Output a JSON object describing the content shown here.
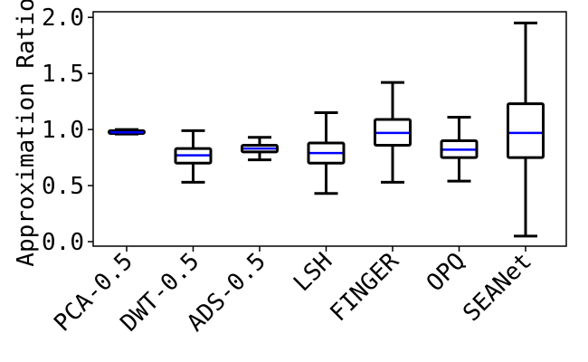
{
  "chart_data": {
    "type": "box",
    "title": "",
    "xlabel": "",
    "ylabel": "Approximation Ratio",
    "ylim": [
      -0.04,
      2.05
    ],
    "yticks": [
      "0.0",
      "0.5",
      "1.0",
      "1.5",
      "2.0"
    ],
    "ytick_values": [
      0.0,
      0.5,
      1.0,
      1.5,
      2.0
    ],
    "grid": false,
    "box_color": "#000000",
    "median_color": "#0000ff",
    "categories": [
      "PCA-0.5",
      "DWT-0.5",
      "ADS-0.5",
      "LSH",
      "FINGER",
      "OPQ",
      "SEANet"
    ],
    "boxes": [
      {
        "whisker_low": 0.96,
        "q1": 0.965,
        "median": 0.975,
        "q3": 0.99,
        "whisker_high": 1.0
      },
      {
        "whisker_low": 0.53,
        "q1": 0.7,
        "median": 0.77,
        "q3": 0.83,
        "whisker_high": 0.99
      },
      {
        "whisker_low": 0.73,
        "q1": 0.8,
        "median": 0.83,
        "q3": 0.86,
        "whisker_high": 0.93
      },
      {
        "whisker_low": 0.43,
        "q1": 0.7,
        "median": 0.79,
        "q3": 0.88,
        "whisker_high": 1.15
      },
      {
        "whisker_low": 0.53,
        "q1": 0.86,
        "median": 0.97,
        "q3": 1.09,
        "whisker_high": 1.42
      },
      {
        "whisker_low": 0.54,
        "q1": 0.75,
        "median": 0.82,
        "q3": 0.9,
        "whisker_high": 1.11
      },
      {
        "whisker_low": 0.05,
        "q1": 0.75,
        "median": 0.97,
        "q3": 1.23,
        "whisker_high": 1.95
      }
    ]
  }
}
